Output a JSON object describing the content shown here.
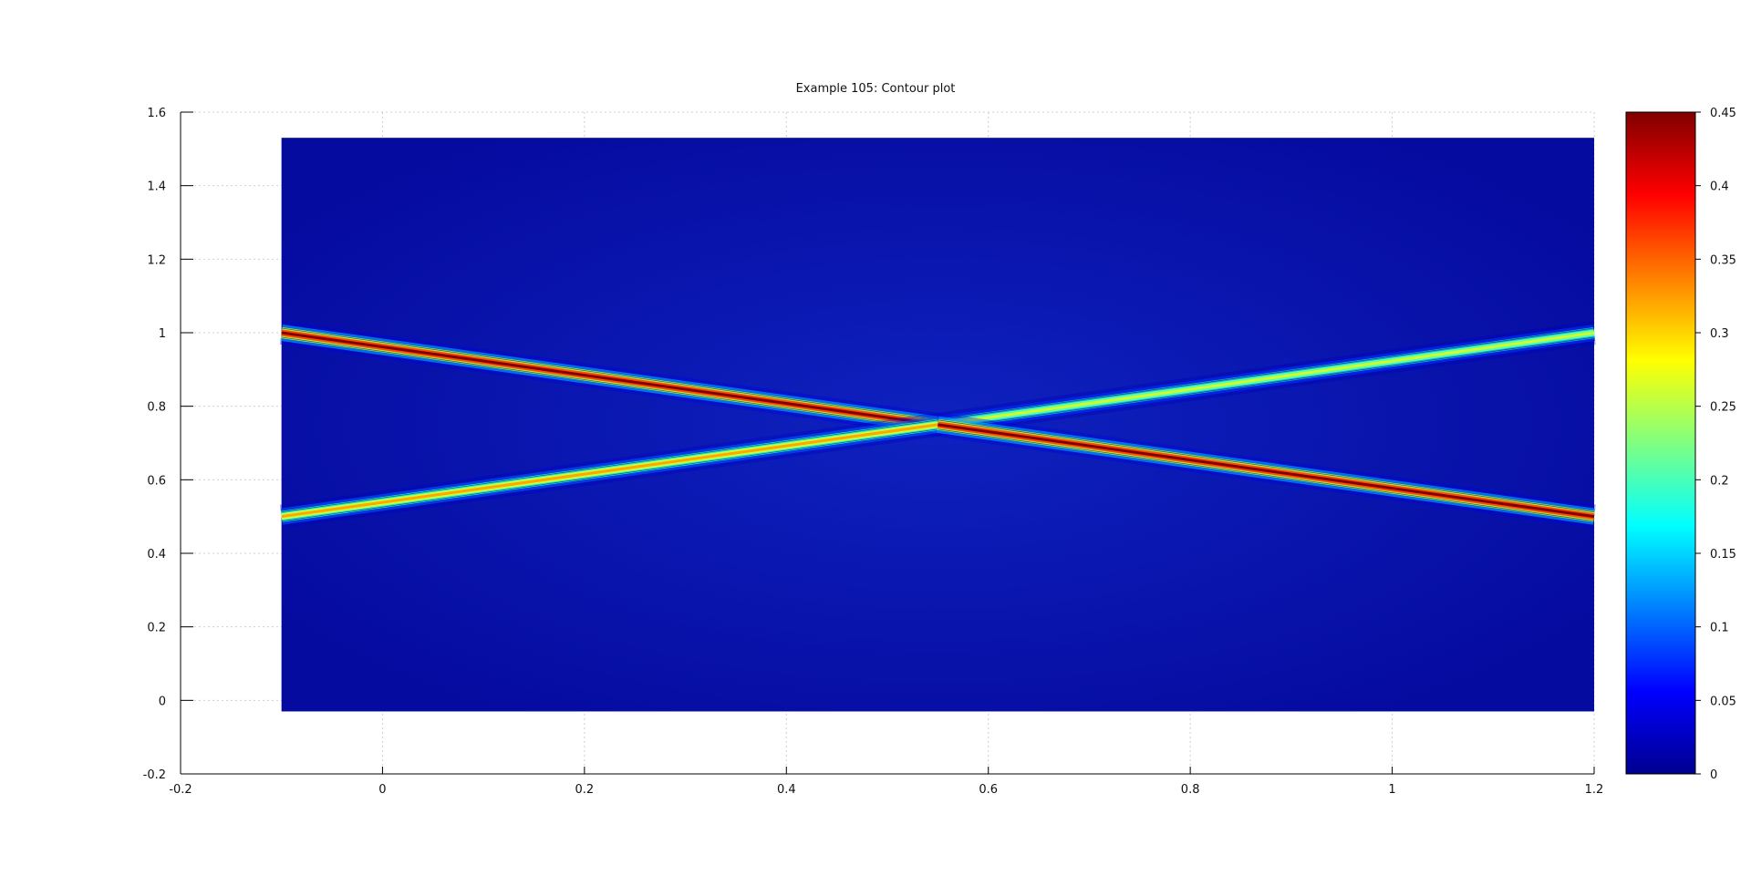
{
  "chart_data": {
    "type": "heatmap",
    "title": "Example 105: Contour plot",
    "xlabel": "",
    "ylabel": "",
    "xlim": [
      -0.2,
      1.2
    ],
    "ylim": [
      -0.2,
      1.6
    ],
    "x_ticks": [
      "-0.2",
      "0",
      "0.2",
      "0.4",
      "0.6",
      "0.8",
      "1",
      "1.2"
    ],
    "y_ticks": [
      "-0.2",
      "0",
      "0.2",
      "0.4",
      "0.6",
      "0.8",
      "1",
      "1.2",
      "1.4",
      "1.6"
    ],
    "data_extent": {
      "x": [
        -0.1,
        1.2
      ],
      "y": [
        -0.03,
        1.53
      ]
    },
    "grid": true,
    "colormap": "jet",
    "colorbar": {
      "range": [
        0,
        0.45
      ],
      "ticks": [
        "0",
        "0.05",
        "0.1",
        "0.15",
        "0.2",
        "0.25",
        "0.3",
        "0.35",
        "0.4",
        "0.45"
      ]
    },
    "features": [
      {
        "name": "",
        "x": [
          -0.1,
          0.55
        ],
        "y": [
          1.0,
          0.75
        ],
        "peak": 0.45
      },
      {
        "name": "",
        "x": [
          -0.1,
          0.55
        ],
        "y": [
          0.5,
          0.75
        ],
        "peak": 0.32
      },
      {
        "name": "",
        "x": [
          0.55,
          1.2
        ],
        "y": [
          0.75,
          1.0
        ],
        "peak": 0.26
      },
      {
        "name": "",
        "x": [
          0.55,
          1.2
        ],
        "y": [
          0.75,
          0.5
        ],
        "peak": 0.45
      }
    ],
    "background_value": 0.015
  }
}
